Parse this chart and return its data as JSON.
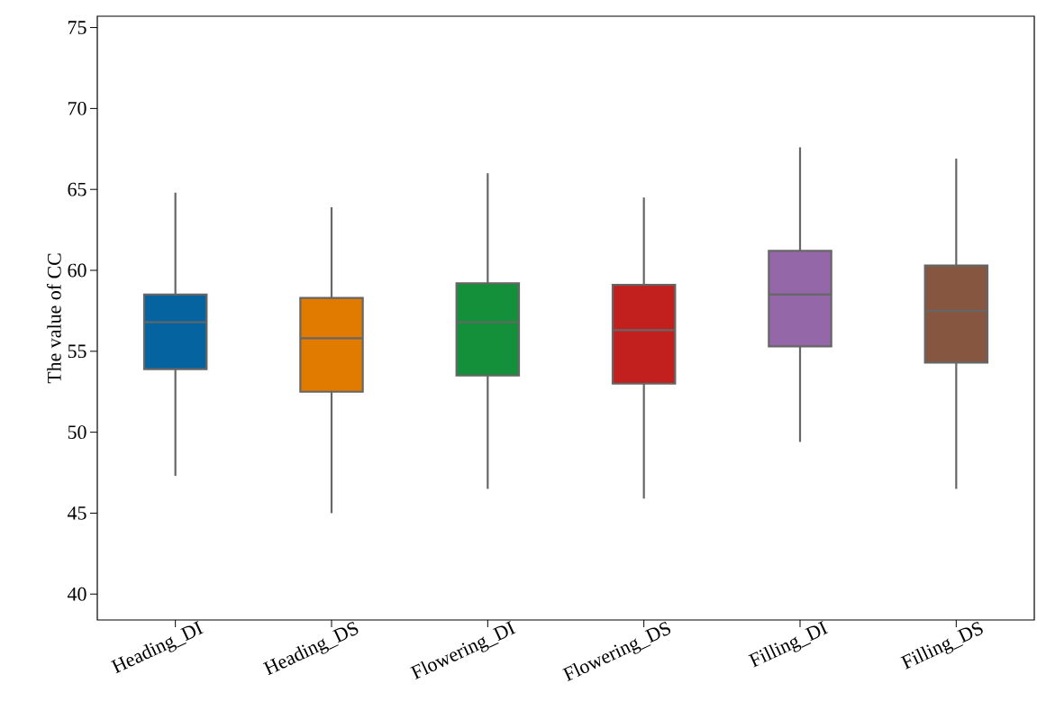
{
  "chart_data": {
    "type": "box",
    "ylabel": "The value of CC",
    "categories": [
      "Heading_DI",
      "Heading_DS",
      "Flowering_DI",
      "Flowering_DS",
      "Filling_DI",
      "Filling_DS"
    ],
    "boxes": [
      {
        "low": 47.3,
        "q1": 53.9,
        "median": 56.8,
        "q3": 58.5,
        "high": 64.8
      },
      {
        "low": 45.0,
        "q1": 52.5,
        "median": 55.8,
        "q3": 58.3,
        "high": 63.9
      },
      {
        "low": 46.5,
        "q1": 53.5,
        "median": 56.8,
        "q3": 59.2,
        "high": 66.0
      },
      {
        "low": 45.9,
        "q1": 53.0,
        "median": 56.3,
        "q3": 59.1,
        "high": 64.5
      },
      {
        "low": 49.4,
        "q1": 55.3,
        "median": 58.5,
        "q3": 61.2,
        "high": 67.6
      },
      {
        "low": 46.5,
        "q1": 54.3,
        "median": 57.5,
        "q3": 60.3,
        "high": 66.9
      }
    ],
    "colors": [
      "#0564a0",
      "#e07b00",
      "#148f3a",
      "#c21f1f",
      "#9467a8",
      "#875640"
    ],
    "ylim": [
      38.4,
      75.7
    ],
    "yticks": [
      40,
      45,
      50,
      55,
      60,
      65,
      70,
      75
    ]
  }
}
